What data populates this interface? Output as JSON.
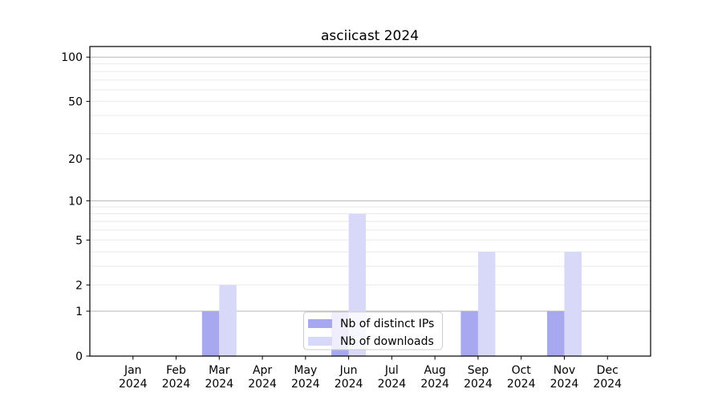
{
  "chart_data": {
    "type": "bar",
    "title": "asciicast 2024",
    "categories": [
      "Jan",
      "Feb",
      "Mar",
      "Apr",
      "May",
      "Jun",
      "Jul",
      "Aug",
      "Sep",
      "Oct",
      "Nov",
      "Dec"
    ],
    "category_year": "2024",
    "series": [
      {
        "name": "Nb of distinct IPs",
        "color": "#a8a8f0",
        "values": [
          0,
          0,
          1,
          0,
          0,
          1,
          0,
          0,
          1,
          0,
          1,
          0
        ]
      },
      {
        "name": "Nb of downloads",
        "color": "#d8d8f8",
        "values": [
          0,
          0,
          2,
          0,
          0,
          8,
          0,
          0,
          4,
          0,
          4,
          0
        ]
      }
    ],
    "xlabel": "",
    "ylabel": "",
    "yscale": "log1p",
    "ylim": [
      0,
      118
    ],
    "yticks": [
      0,
      1,
      2,
      5,
      10,
      20,
      50,
      100
    ],
    "grid": {
      "major": [
        1,
        10,
        100
      ],
      "minor": [
        2,
        3,
        4,
        5,
        6,
        7,
        8,
        9,
        20,
        30,
        40,
        50,
        60,
        70,
        80,
        90
      ],
      "major_color": "#b5b5b5",
      "minor_color": "#eaeaea"
    },
    "legend": {
      "position": "lower-center",
      "background": "rgba(255,255,255,0.8)",
      "border_color": "#cccccc"
    },
    "axis_color": "#000000"
  }
}
